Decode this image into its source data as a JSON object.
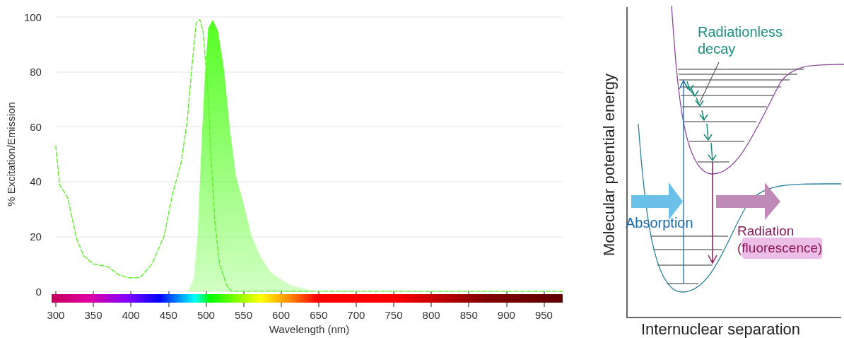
{
  "chart_data": [
    {
      "type": "line",
      "xlabel": "Wavelength (nm)",
      "ylabel": "% Excitation/Emission",
      "xlim": [
        300,
        975
      ],
      "xticks": [
        300,
        350,
        400,
        450,
        500,
        550,
        600,
        650,
        700,
        750,
        800,
        850,
        900,
        950
      ],
      "ylim": [
        0,
        100
      ],
      "yticks": [
        0,
        20,
        40,
        60,
        80,
        100
      ],
      "grid": "y",
      "marker": "none",
      "series": [
        {
          "type": "line",
          "line_style": "dashed",
          "color": "#66ee33",
          "x": [
            300,
            305,
            316,
            328,
            337,
            350,
            369,
            384,
            397,
            412,
            428,
            444,
            456,
            467,
            475,
            481,
            487,
            492,
            496,
            503,
            507,
            512,
            518,
            528,
            534,
            975
          ],
          "values": [
            53,
            39,
            34,
            19,
            13,
            10,
            9,
            6,
            5,
            5,
            10,
            20,
            36,
            47,
            62,
            81,
            98,
            99,
            95,
            72,
            47,
            25,
            10,
            2,
            0,
            0
          ]
        },
        {
          "type": "area",
          "color": "#55ff22",
          "x": [
            476,
            484,
            489,
            493,
            498,
            503,
            509,
            516,
            524,
            532,
            540,
            549,
            561,
            572,
            586,
            602,
            615,
            631,
            643
          ],
          "values": [
            0,
            5,
            21,
            47,
            76,
            96,
            99,
            95,
            81,
            59,
            42,
            33,
            20,
            13,
            7,
            4,
            2,
            1,
            0
          ]
        }
      ]
    },
    {
      "type": "other",
      "xlabel": "Internuclear separation",
      "ylabel": "Molecular potential energy",
      "annotations": [
        "Radiationless decay",
        "Absorption",
        "Radiation (fluorescence)"
      ]
    }
  ]
}
